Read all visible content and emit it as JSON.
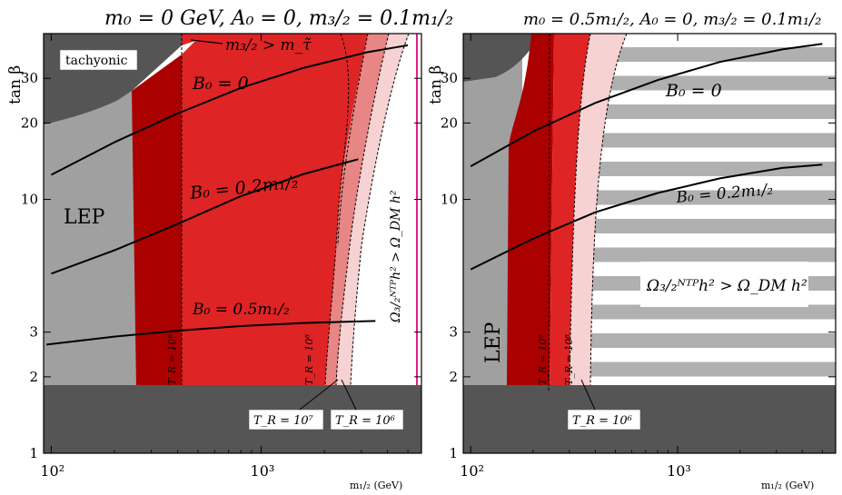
{
  "chart_data": [
    {
      "type": "area",
      "title": "m₀ = 0 GeV, A₀ = 0, m₃/₂ = 0.1m₁/₂",
      "xlabel": "m₁/₂ (GeV)",
      "ylabel": "tan β",
      "xscale": "log",
      "yscale": "log",
      "xlim": [
        92,
        5800
      ],
      "ylim": [
        1,
        45
      ],
      "x_ticks": [
        {
          "value": 100,
          "label": "10²"
        },
        {
          "value": 1000,
          "label": "10³"
        }
      ],
      "y_ticks": [
        {
          "value": 1,
          "label": "1"
        },
        {
          "value": 2,
          "label": "2"
        },
        {
          "value": 3,
          "label": "3"
        },
        {
          "value": 10,
          "label": "10"
        },
        {
          "value": 20,
          "label": "20"
        },
        {
          "value": 30,
          "label": "30"
        }
      ],
      "region_labels": {
        "tachyonic": "tachyonic",
        "lep": "LEP",
        "gravitino_nlsp": "m₃/₂ > m_τ̃",
        "omega": "Ω₃/₂ᴺᵀᴾh² > Ω_DM h²"
      },
      "series": [
        {
          "name": "B₀ = 0",
          "x": [
            100,
            200,
            400,
            800,
            1600,
            3200,
            5000
          ],
          "y": [
            12.5,
            16.8,
            21.8,
            27.5,
            33.0,
            38.0,
            40.5
          ]
        },
        {
          "name": "B₀ = 0.2m₁/₂",
          "x": [
            100,
            200,
            400,
            800,
            1600,
            2900
          ],
          "y": [
            5.1,
            6.3,
            8.0,
            10.3,
            12.6,
            14.4
          ]
        },
        {
          "name": "B₀ = 0.5m₁/₂",
          "x": [
            95,
            200,
            400,
            800,
            1600,
            3500
          ],
          "y": [
            2.68,
            2.88,
            3.04,
            3.17,
            3.26,
            3.32
          ]
        }
      ],
      "bands": [
        {
          "name": "T_R = 10⁹",
          "label": "T_R = 10⁹",
          "x_left": [
            255,
            255
          ],
          "x_right": [
            430,
            430
          ]
        },
        {
          "name": "T_R = 10⁸",
          "label": "T_R = 10⁸",
          "x_left": [
            1980,
            2600
          ],
          "x_right": [
            2350,
            4800
          ]
        },
        {
          "name": "T_R = 10⁷",
          "label": "T_R = 10⁷",
          "x_right": [
            2500,
            5200
          ]
        },
        {
          "name": "T_R = 10⁶",
          "label": "T_R = 10⁶",
          "x_right": [
            2900,
            5600
          ]
        }
      ]
    },
    {
      "type": "area",
      "title": "m₀ = 0.5m₁/₂, A₀ = 0, m₃/₂ = 0.1m₁/₂",
      "xlabel": "m₁/₂ (GeV)",
      "ylabel": "tan β",
      "xscale": "log",
      "yscale": "log",
      "xlim": [
        92,
        5800
      ],
      "ylim": [
        1,
        45
      ],
      "x_ticks": [
        {
          "value": 100,
          "label": "10²"
        },
        {
          "value": 1000,
          "label": "10³"
        }
      ],
      "y_ticks": [
        {
          "value": 1,
          "label": "1"
        },
        {
          "value": 2,
          "label": "2"
        },
        {
          "value": 3,
          "label": "3"
        },
        {
          "value": 10,
          "label": "10"
        },
        {
          "value": 20,
          "label": "20"
        },
        {
          "value": 30,
          "label": "30"
        }
      ],
      "region_labels": {
        "lep": "LEP",
        "omega": "Ω₃/₂ᴺᵀᴾh² > Ω_DM h²"
      },
      "series": [
        {
          "name": "B₀ = 0",
          "x": [
            100,
            200,
            400,
            800,
            1600,
            3200,
            5000
          ],
          "y": [
            13.5,
            18.5,
            24.0,
            29.5,
            34.8,
            39.0,
            41.0
          ]
        },
        {
          "name": "B₀ = 0.2m₁/₂",
          "x": [
            100,
            200,
            400,
            800,
            1600,
            3200,
            5000
          ],
          "y": [
            5.3,
            7.0,
            8.9,
            10.6,
            12.1,
            13.3,
            13.7
          ]
        }
      ],
      "bands": [
        {
          "name": "T_R = 10⁹",
          "label": "T_R = 10⁹",
          "x_left": [
            145,
            160
          ],
          "x_right": [
            235,
            240
          ]
        },
        {
          "name": "T_R = 10⁸",
          "label": "T_R = 10⁸",
          "x_right": [
            320,
            500
          ]
        },
        {
          "name": "T_R = 10⁶",
          "label": "T_R = 10⁶",
          "x_right": [
            385,
            650
          ]
        }
      ]
    }
  ]
}
